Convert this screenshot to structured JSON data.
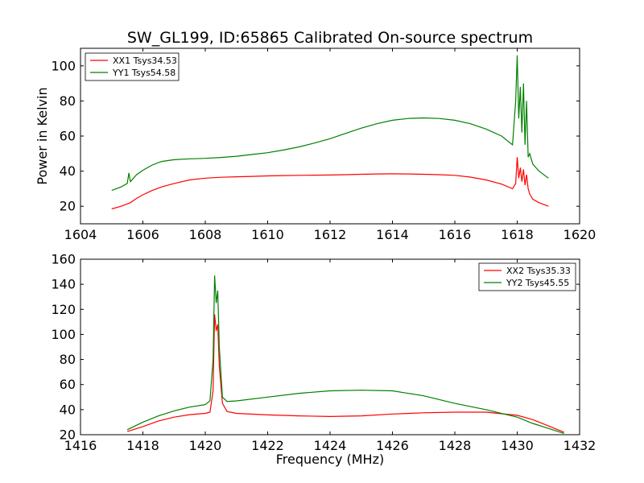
{
  "figure": {
    "title": "SW_GL199, ID:65865 Calibrated On-source spectrum",
    "ylabel": "Power in Kelvin",
    "xlabel": "Frequency (MHz)"
  },
  "chart_data": [
    {
      "type": "line",
      "title": "SW_GL199, ID:65865 Calibrated On-source spectrum",
      "xlabel": "",
      "ylabel": "Power in Kelvin",
      "xlim": [
        1604,
        1620
      ],
      "ylim": [
        10,
        110
      ],
      "xticks": [
        1604,
        1606,
        1608,
        1610,
        1612,
        1614,
        1616,
        1618,
        1620
      ],
      "yticks": [
        20,
        40,
        60,
        80,
        100
      ],
      "grid": false,
      "legend": "top-left",
      "series": [
        {
          "name": "XX1 Tsys34.53",
          "color": "#ff0000",
          "x": [
            1605.0,
            1605.3,
            1605.6,
            1605.8,
            1606.0,
            1606.3,
            1606.6,
            1607.0,
            1607.5,
            1608.0,
            1608.5,
            1609.0,
            1609.5,
            1610.0,
            1610.5,
            1611.0,
            1611.5,
            1612.0,
            1612.5,
            1613.0,
            1613.5,
            1614.0,
            1614.5,
            1615.0,
            1615.5,
            1616.0,
            1616.5,
            1617.0,
            1617.5,
            1617.85,
            1617.95,
            1618.0,
            1618.05,
            1618.1,
            1618.15,
            1618.2,
            1618.25,
            1618.3,
            1618.35,
            1618.4,
            1618.5,
            1618.7,
            1619.0
          ],
          "values": [
            18.5,
            20.0,
            22.0,
            24.5,
            26.5,
            29.0,
            31.0,
            33.0,
            35.0,
            36.0,
            36.5,
            36.8,
            37.0,
            37.3,
            37.5,
            37.6,
            37.7,
            37.8,
            38.0,
            38.2,
            38.4,
            38.5,
            38.4,
            38.2,
            38.0,
            37.6,
            36.6,
            35.0,
            32.6,
            30.0,
            33.0,
            48.0,
            36.0,
            42.0,
            34.0,
            41.0,
            32.0,
            38.0,
            30.0,
            27.0,
            24.0,
            22.0,
            20.0
          ]
        },
        {
          "name": "YY1 Tsys54.58",
          "color": "#008000",
          "x": [
            1605.0,
            1605.3,
            1605.5,
            1605.55,
            1605.6,
            1605.8,
            1606.0,
            1606.3,
            1606.6,
            1607.0,
            1607.5,
            1608.0,
            1608.5,
            1609.0,
            1609.5,
            1610.0,
            1610.5,
            1611.0,
            1611.5,
            1612.0,
            1612.5,
            1613.0,
            1613.5,
            1614.0,
            1614.5,
            1615.0,
            1615.5,
            1616.0,
            1616.5,
            1617.0,
            1617.5,
            1617.85,
            1617.95,
            1618.0,
            1618.05,
            1618.1,
            1618.15,
            1618.2,
            1618.25,
            1618.3,
            1618.35,
            1618.4,
            1618.5,
            1618.7,
            1619.0
          ],
          "values": [
            29.0,
            31.0,
            33.0,
            39.0,
            34.0,
            38.0,
            40.5,
            43.5,
            45.5,
            46.5,
            47.0,
            47.3,
            47.8,
            48.5,
            49.5,
            50.5,
            52.0,
            53.8,
            56.0,
            58.5,
            61.5,
            64.5,
            67.0,
            69.0,
            70.0,
            70.3,
            70.0,
            69.0,
            67.0,
            64.0,
            60.0,
            55.0,
            80.0,
            106.0,
            70.0,
            88.0,
            62.0,
            90.0,
            55.0,
            80.0,
            48.0,
            50.0,
            44.0,
            40.0,
            36.0
          ]
        }
      ]
    },
    {
      "type": "line",
      "title": "",
      "xlabel": "Frequency (MHz)",
      "ylabel": "",
      "xlim": [
        1416,
        1432
      ],
      "ylim": [
        20,
        160
      ],
      "xticks": [
        1416,
        1418,
        1420,
        1422,
        1424,
        1426,
        1428,
        1430,
        1432
      ],
      "yticks": [
        20,
        40,
        60,
        80,
        100,
        120,
        140,
        160
      ],
      "grid": false,
      "legend": "top-right",
      "series": [
        {
          "name": "XX2 Tsys35.33",
          "color": "#ff0000",
          "x": [
            1417.5,
            1418.0,
            1418.5,
            1419.0,
            1419.5,
            1420.0,
            1420.15,
            1420.25,
            1420.3,
            1420.35,
            1420.4,
            1420.45,
            1420.55,
            1420.7,
            1421.0,
            1422.0,
            1423.0,
            1424.0,
            1425.0,
            1426.0,
            1427.0,
            1428.0,
            1429.0,
            1430.0,
            1430.5,
            1431.0,
            1431.5
          ],
          "values": [
            22.5,
            26.5,
            31.0,
            34.0,
            36.0,
            37.0,
            38.0,
            55.0,
            116.0,
            103.0,
            108.0,
            75.0,
            45.0,
            38.5,
            37.0,
            35.8,
            35.0,
            34.5,
            35.0,
            36.5,
            37.5,
            38.0,
            38.0,
            35.5,
            32.0,
            27.0,
            22.0
          ]
        },
        {
          "name": "YY2 Tsys45.55",
          "color": "#008000",
          "x": [
            1417.5,
            1418.0,
            1418.5,
            1419.0,
            1419.5,
            1420.0,
            1420.15,
            1420.25,
            1420.3,
            1420.35,
            1420.4,
            1420.45,
            1420.55,
            1420.7,
            1421.0,
            1422.0,
            1423.0,
            1424.0,
            1425.0,
            1426.0,
            1427.0,
            1428.0,
            1429.0,
            1430.0,
            1430.5,
            1431.0,
            1431.5
          ],
          "values": [
            24.0,
            30.0,
            35.0,
            39.0,
            42.0,
            44.0,
            47.0,
            80.0,
            147.0,
            125.0,
            135.0,
            90.0,
            50.0,
            46.5,
            47.0,
            50.0,
            53.0,
            55.0,
            55.5,
            55.0,
            51.0,
            45.0,
            40.0,
            34.0,
            29.0,
            25.0,
            21.0
          ]
        }
      ]
    }
  ]
}
